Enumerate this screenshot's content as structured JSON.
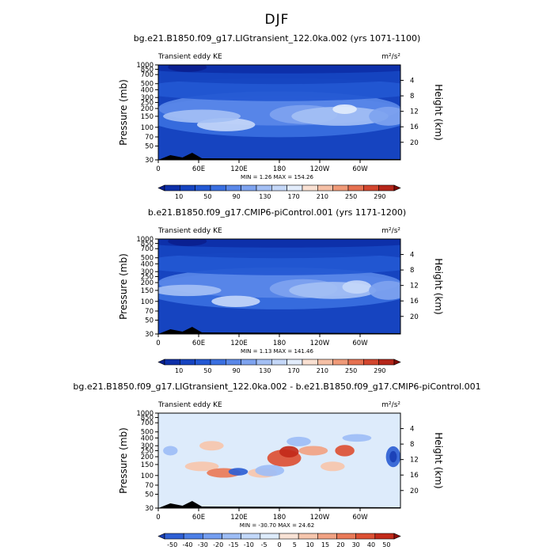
{
  "figure": {
    "title": "DJF"
  },
  "chart_data": [
    {
      "type": "heatmap",
      "title": "bg.e21.B1850.f09_g17.LIGtransient_122.0ka.002 (yrs 1071-1100)",
      "left_label": "Transient eddy KE",
      "units": "m²/s²",
      "xlabel": "",
      "ylabel": "Pressure (mb)",
      "ylabel_right": "Height (km)",
      "x_ticks": [
        "0",
        "60E",
        "120E",
        "180",
        "120W",
        "60W"
      ],
      "y_ticks": [
        "30",
        "50",
        "70",
        "100",
        "150",
        "200",
        "250",
        "300",
        "400",
        "500",
        "700",
        "850",
        "1000"
      ],
      "y_ticks_right": [
        "20",
        "16",
        "12",
        "8",
        "4"
      ],
      "stats": "MIN =     1.26   MAX =  154.26",
      "min": 1.26,
      "max": 154.26,
      "colorbar_labels": [
        "10",
        "50",
        "90",
        "130",
        "170",
        "210",
        "250",
        "290"
      ]
    },
    {
      "type": "heatmap",
      "title": "b.e21.B1850.f09_g17.CMIP6-piControl.001 (yrs 1171-1200)",
      "left_label": "Transient eddy KE",
      "units": "m²/s²",
      "xlabel": "",
      "ylabel": "Pressure (mb)",
      "ylabel_right": "Height (km)",
      "x_ticks": [
        "0",
        "60E",
        "120E",
        "180",
        "120W",
        "60W"
      ],
      "y_ticks": [
        "30",
        "50",
        "70",
        "100",
        "150",
        "200",
        "250",
        "300",
        "400",
        "500",
        "700",
        "850",
        "1000"
      ],
      "y_ticks_right": [
        "20",
        "16",
        "12",
        "8",
        "4"
      ],
      "stats": "MIN =     1.13   MAX =  141.46",
      "min": 1.13,
      "max": 141.46,
      "colorbar_labels": [
        "10",
        "50",
        "90",
        "130",
        "170",
        "210",
        "250",
        "290"
      ]
    },
    {
      "type": "heatmap",
      "title": "bg.e21.B1850.f09_g17.LIGtransient_122.0ka.002 - b.e21.B1850.f09_g17.CMIP6-piControl.001",
      "left_label": "Transient eddy KE",
      "units": "m²/s²",
      "xlabel": "",
      "ylabel": "Pressure (mb)",
      "ylabel_right": "Height (km)",
      "x_ticks": [
        "0",
        "60E",
        "120E",
        "180",
        "120W",
        "60W"
      ],
      "y_ticks": [
        "30",
        "50",
        "70",
        "100",
        "150",
        "200",
        "250",
        "300",
        "400",
        "500",
        "700",
        "850",
        "1000"
      ],
      "y_ticks_right": [
        "20",
        "16",
        "12",
        "8",
        "4"
      ],
      "stats": "MIN =   -30.70   MAX =    24.62",
      "min": -30.7,
      "max": 24.62,
      "colorbar_labels": [
        "-50",
        "-40",
        "-30",
        "-20",
        "-15",
        "-10",
        "-5",
        "0",
        "5",
        "10",
        "15",
        "20",
        "30",
        "40",
        "50"
      ]
    }
  ],
  "colors": {
    "seq": [
      "#0a1f8f",
      "#0d2fa8",
      "#1644c0",
      "#2358d3",
      "#3a6fe0",
      "#5a88e8",
      "#7ea3ef",
      "#a3bff4",
      "#c4d7f8",
      "#e2ecfb",
      "#f9e0d2",
      "#f5bfa5",
      "#ef9a78",
      "#e57050",
      "#d2462e",
      "#b5261a",
      "#7f0c08"
    ],
    "div": [
      "#1a3fb5",
      "#2e5fd4",
      "#4c7fe6",
      "#749ef0",
      "#9dbdf6",
      "#c2d8fa",
      "#ddebfb",
      "#f8e2d5",
      "#f6c6ad",
      "#f1a283",
      "#e97a58",
      "#dc5034",
      "#c22a1a",
      "#8f0f0b"
    ]
  }
}
